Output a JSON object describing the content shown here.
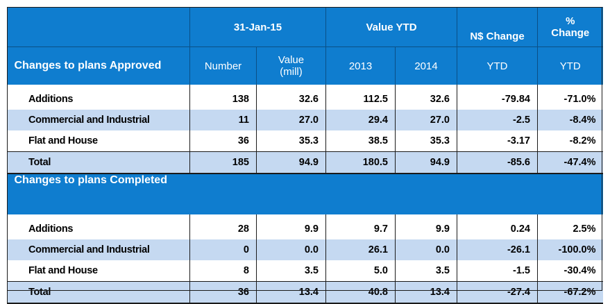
{
  "header": {
    "row1": {
      "date": "31-Jan-15",
      "value_ytd": "Value YTD",
      "ns_change": "N$ Change",
      "pct_change_line1": "%",
      "pct_change_line2": "Change"
    },
    "row2": {
      "title": "Changes to plans Approved",
      "number": "Number",
      "value_line1": "Value",
      "value_line2": "(mill)",
      "year1": "2013",
      "year2": "2014",
      "ytd1": "YTD",
      "ytd2": "YTD"
    }
  },
  "approved": {
    "rows": [
      {
        "label": "Additions",
        "number": "138",
        "value": "32.6",
        "y2013": "112.5",
        "y2014": "32.6",
        "change": "-79.84",
        "pct": "-71.0%"
      },
      {
        "label": "Commercial and Industrial",
        "number": "11",
        "value": "27.0",
        "y2013": "29.4",
        "y2014": "27.0",
        "change": "-2.5",
        "pct": "-8.4%"
      },
      {
        "label": "Flat and House",
        "number": "36",
        "value": "35.3",
        "y2013": "38.5",
        "y2014": "35.3",
        "change": "-3.17",
        "pct": "-8.2%"
      },
      {
        "label": "Total",
        "number": "185",
        "value": "94.9",
        "y2013": "180.5",
        "y2014": "94.9",
        "change": "-85.6",
        "pct": "-47.4%"
      }
    ]
  },
  "completed": {
    "title": "Changes to plans Completed",
    "rows": [
      {
        "label": "Additions",
        "number": "28",
        "value": "9.9",
        "y2013": "9.7",
        "y2014": "9.9",
        "change": "0.24",
        "pct": "2.5%"
      },
      {
        "label": "Commercial and Industrial",
        "number": "0",
        "value": "0.0",
        "y2013": "26.1",
        "y2014": "0.0",
        "change": "-26.1",
        "pct": "-100.0%"
      },
      {
        "label": "Flat and House",
        "number": "8",
        "value": "3.5",
        "y2013": "5.0",
        "y2014": "3.5",
        "change": "-1.5",
        "pct": "-30.4%"
      },
      {
        "label": "Total",
        "number": "36",
        "value": "13.4",
        "y2013": "40.8",
        "y2014": "13.4",
        "change": "-27.4",
        "pct": "-67.2%"
      }
    ]
  },
  "colors": {
    "header_blue": "#0f7dcf",
    "row_light_blue": "#c5d9f1"
  }
}
